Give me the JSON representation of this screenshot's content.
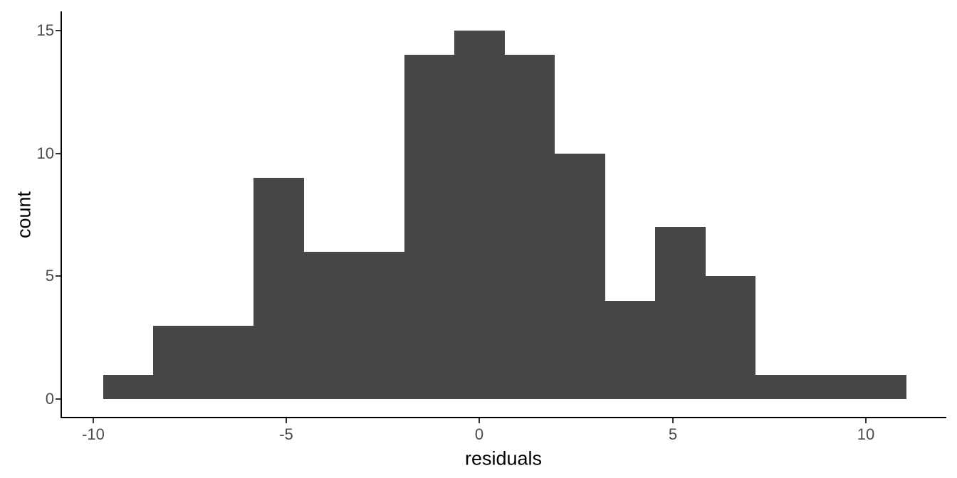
{
  "chart_data": {
    "type": "histogram",
    "title": "",
    "xlabel": "residuals",
    "ylabel": "count",
    "bin_edges": [
      -9.75,
      -8.45,
      -7.15,
      -5.85,
      -4.55,
      -3.25,
      -1.95,
      -0.65,
      0.65,
      1.95,
      3.25,
      4.55,
      5.85,
      7.15,
      8.45,
      9.75,
      11.05
    ],
    "counts": [
      1,
      3,
      3,
      9,
      6,
      6,
      14,
      15,
      14,
      10,
      4,
      7,
      5,
      1,
      1,
      1
    ],
    "x_ticks": [
      -10,
      -5,
      0,
      5,
      10
    ],
    "x_tick_labels": [
      "-10",
      "-5",
      "0",
      "5",
      "10"
    ],
    "y_ticks": [
      0,
      5,
      10,
      15
    ],
    "y_tick_labels": [
      "0",
      "5",
      "10",
      "15"
    ],
    "x_domain": [
      -10.85,
      12.09
    ],
    "y_domain": [
      -0.74,
      15.77
    ],
    "grid": false,
    "legend": false,
    "colors": {
      "bar_fill": "#474747",
      "axis_line": "#000000",
      "tick_mark": "#333333",
      "tick_label": "#4d4d4d",
      "axis_title": "#000000",
      "background": "#ffffff"
    }
  }
}
